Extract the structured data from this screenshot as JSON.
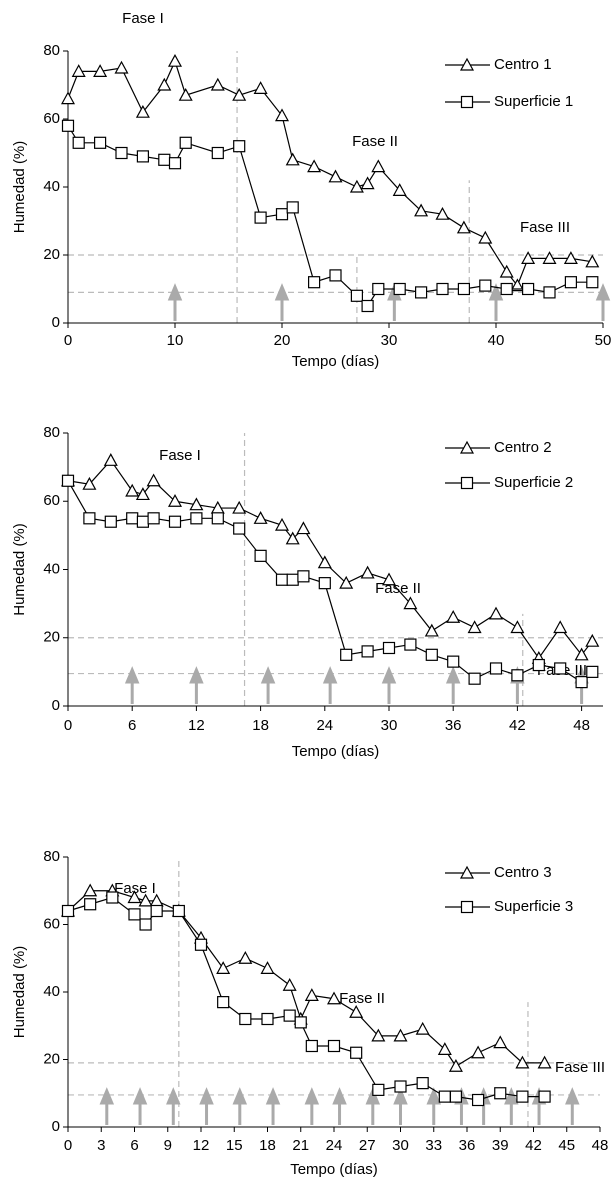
{
  "chart_data": [
    {
      "type": "line",
      "xlabel": "Tempo (días)",
      "ylabel": "Humedad (%)",
      "xlim": [
        0,
        50
      ],
      "ylim": [
        0,
        80
      ],
      "xticks": [
        0,
        10,
        20,
        30,
        40,
        50
      ],
      "yticks": [
        0,
        20,
        40,
        60,
        80
      ],
      "annotations": [
        "Fase I",
        "Fase II",
        "Fase III"
      ],
      "series": [
        {
          "name": "Centro 1",
          "marker": "triangle",
          "color": "#000000",
          "x": [
            0,
            1,
            3,
            5,
            7,
            9,
            10,
            11,
            14,
            16,
            18,
            20,
            21,
            23,
            25,
            27,
            28,
            29,
            31,
            33,
            35,
            37,
            39,
            41,
            42,
            43,
            45,
            47,
            49
          ],
          "values": [
            66,
            74,
            74,
            75,
            62,
            70,
            77,
            67,
            70,
            67,
            69,
            61,
            48,
            46,
            43,
            40,
            41,
            46,
            39,
            33,
            32,
            28,
            25,
            15,
            11,
            19,
            19,
            19,
            18
          ]
        },
        {
          "name": "Superficie 1",
          "marker": "square",
          "color": "#000000",
          "x": [
            0,
            1,
            3,
            5,
            7,
            9,
            10,
            11,
            14,
            16,
            18,
            20,
            21,
            23,
            25,
            27,
            28,
            29,
            31,
            33,
            35,
            37,
            39,
            41,
            43,
            45,
            47,
            49
          ],
          "values": [
            58,
            53,
            53,
            50,
            49,
            48,
            47,
            53,
            50,
            52,
            31,
            32,
            34,
            12,
            14,
            8,
            5,
            10,
            10,
            9,
            10,
            10,
            11,
            10,
            10,
            9,
            12,
            12
          ]
        }
      ],
      "arrows": [
        10,
        20,
        30.5,
        40,
        50
      ],
      "hlines": [
        20,
        9
      ],
      "vlines": [
        {
          "x": 15.8,
          "y": [
            0,
            80
          ]
        },
        {
          "x": 27,
          "y": [
            0,
            20
          ]
        },
        {
          "x": 37.5,
          "y": [
            0,
            42
          ]
        }
      ]
    },
    {
      "type": "line",
      "xlabel": "Tempo (días)",
      "ylabel": "Humedad (%)",
      "xlim": [
        0,
        50
      ],
      "ylim": [
        0,
        80
      ],
      "xticks": [
        0,
        6,
        12,
        18,
        24,
        30,
        36,
        42,
        48
      ],
      "yticks": [
        0,
        20,
        40,
        60,
        80
      ],
      "annotations": [
        "Fase I",
        "Fase II",
        "Fase III"
      ],
      "series": [
        {
          "name": "Centro 2",
          "marker": "triangle",
          "color": "#000000",
          "x": [
            0,
            2,
            4,
            6,
            7,
            8,
            10,
            12,
            14,
            16,
            18,
            20,
            21,
            22,
            24,
            26,
            28,
            30,
            32,
            34,
            36,
            38,
            40,
            42,
            44,
            46,
            48,
            49
          ],
          "values": [
            66,
            65,
            72,
            63,
            62,
            66,
            60,
            59,
            58,
            58,
            55,
            53,
            49,
            52,
            42,
            36,
            39,
            37,
            30,
            22,
            26,
            23,
            27,
            23,
            14,
            23,
            15,
            19
          ]
        },
        {
          "name": "Superficie 2",
          "marker": "square",
          "color": "#000000",
          "x": [
            0,
            2,
            4,
            6,
            7,
            8,
            10,
            12,
            14,
            16,
            18,
            20,
            21,
            22,
            24,
            26,
            28,
            30,
            32,
            34,
            36,
            38,
            40,
            42,
            44,
            46,
            48,
            49
          ],
          "values": [
            66,
            55,
            54,
            55,
            54,
            55,
            54,
            55,
            55,
            52,
            44,
            37,
            37,
            38,
            36,
            15,
            16,
            17,
            18,
            15,
            13,
            8,
            11,
            9,
            12,
            11,
            7,
            10
          ]
        }
      ],
      "arrows": [
        6,
        12,
        18.7,
        24.5,
        30,
        36,
        42,
        48
      ],
      "hlines": [
        20,
        9.5
      ],
      "vlines": [
        {
          "x": 16.5,
          "y": [
            0,
            80
          ]
        },
        {
          "x": 42.5,
          "y": [
            0,
            27
          ]
        }
      ]
    },
    {
      "type": "line",
      "xlabel": "Tempo (días)",
      "ylabel": "Humedad (%)",
      "xlim": [
        0,
        48
      ],
      "ylim": [
        0,
        80
      ],
      "xticks": [
        0,
        3,
        6,
        9,
        12,
        15,
        18,
        21,
        24,
        27,
        30,
        33,
        36,
        39,
        42,
        45,
        48
      ],
      "yticks": [
        0,
        20,
        40,
        60,
        80
      ],
      "annotations": [
        "Fase I",
        "Fase II",
        "Fase III"
      ],
      "series": [
        {
          "name": "Centro 3",
          "marker": "triangle",
          "color": "#000000",
          "x": [
            0,
            2,
            4,
            6,
            7,
            8,
            10,
            12,
            14,
            16,
            18,
            20,
            21,
            22,
            24,
            26,
            28,
            30,
            32,
            34,
            35,
            37,
            39,
            41,
            43
          ],
          "values": [
            64,
            70,
            70,
            68,
            67,
            67,
            64,
            56,
            47,
            50,
            47,
            42,
            32,
            39,
            38,
            34,
            27,
            27,
            29,
            23,
            18,
            22,
            25,
            19,
            19
          ]
        },
        {
          "name": "Superficie 3",
          "marker": "square",
          "color": "#000000",
          "x": [
            0,
            2,
            4,
            6,
            7,
            8,
            10,
            12,
            14,
            16,
            18,
            20,
            21,
            22,
            24,
            26,
            28,
            30,
            32,
            34,
            35,
            37,
            39,
            41,
            43
          ],
          "values": [
            64,
            66,
            68,
            63,
            60,
            64,
            64,
            54,
            37,
            32,
            32,
            33,
            31,
            24,
            24,
            22,
            11,
            12,
            13,
            9,
            9,
            8,
            10,
            9,
            9
          ]
        }
      ],
      "arrows": [
        3.5,
        6.5,
        9.5,
        12.5,
        15.5,
        18.5,
        22,
        24.5,
        27.5,
        30,
        33,
        35.5,
        37.5,
        40,
        42.5,
        45.5
      ],
      "hlines": [
        19,
        9.5
      ],
      "vlines": [
        {
          "x": 10,
          "y": [
            0,
            80
          ]
        },
        {
          "x": 41.5,
          "y": [
            0,
            37
          ]
        }
      ]
    }
  ]
}
